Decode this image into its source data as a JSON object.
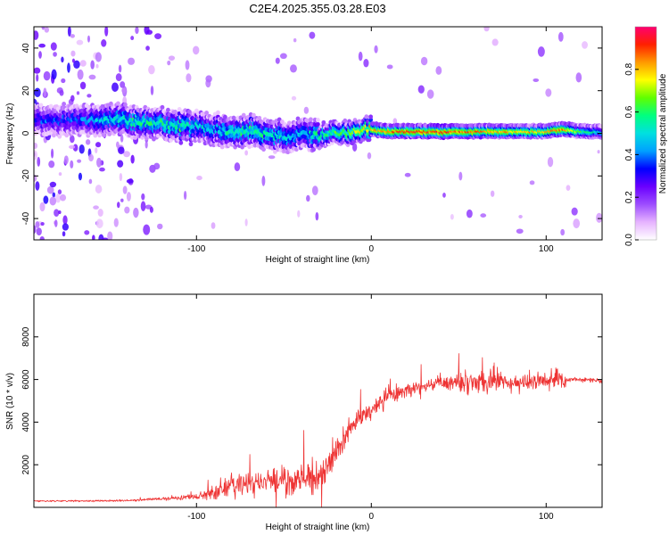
{
  "title": "C2E4.2025.355.03.28.E03",
  "chart_data": [
    {
      "type": "heatmap",
      "xlabel": "Height of straight line (km)",
      "ylabel": "Frequency (Hz)",
      "xlim": [
        -193,
        132
      ],
      "ylim": [
        -50,
        50
      ],
      "xticks": [
        -100,
        0,
        100
      ],
      "xtick_labels": [
        "-100",
        "0",
        "100"
      ],
      "yticks": [
        -40,
        -20,
        0,
        20,
        40
      ],
      "ytick_labels": [
        "-40",
        "-20",
        "0",
        "20",
        "40"
      ],
      "colorbar": {
        "label": "Normalized spectral amplitude",
        "range": [
          0,
          1
        ],
        "ticks": [
          0,
          0.2,
          0.4,
          0.6,
          0.8
        ],
        "tick_labels": [
          "0.0",
          "0.2",
          "0.4",
          "0.6",
          "0.8"
        ],
        "colors": [
          "#ffffff",
          "#e6b3ff",
          "#9d4dff",
          "#6a00ff",
          "#0000ff",
          "#00a0ff",
          "#00e0e0",
          "#00ff80",
          "#60ff00",
          "#ffff00",
          "#ff9900",
          "#ff2000",
          "#ff0070"
        ]
      },
      "ridge": {
        "x": [
          -170,
          -150,
          -130,
          -110,
          -100,
          -90,
          -80,
          -70,
          -60,
          -50,
          -40,
          -30,
          -20,
          -10,
          0,
          10,
          20,
          40,
          60,
          80,
          100,
          110,
          120,
          132
        ],
        "center_hz": [
          6,
          7,
          5,
          3,
          3,
          2,
          1,
          2,
          0,
          -2,
          0,
          -1,
          0,
          1,
          2,
          1,
          1,
          1,
          1,
          1,
          1,
          2,
          1,
          1
        ],
        "amplitude": [
          0.35,
          0.5,
          0.55,
          0.55,
          0.5,
          0.45,
          0.55,
          0.55,
          0.55,
          0.5,
          0.45,
          0.55,
          0.6,
          0.7,
          0.8,
          0.85,
          0.9,
          0.9,
          0.85,
          0.8,
          0.8,
          0.85,
          0.6,
          0.5
        ]
      }
    },
    {
      "type": "line",
      "xlabel": "Height of straight line (km)",
      "ylabel": "SNR (10 * v/v)",
      "xlim": [
        -193,
        132
      ],
      "ylim": [
        0,
        10000
      ],
      "xticks": [
        -100,
        0,
        100
      ],
      "xtick_labels": [
        "-100",
        "0",
        "100"
      ],
      "yticks": [
        2000,
        4000,
        6000,
        8000
      ],
      "ytick_labels": [
        "2000",
        "4000",
        "6000",
        "8000"
      ],
      "series": [
        {
          "name": "SNR",
          "color": "#ee3333",
          "x": [
            -193,
            -160,
            -140,
            -120,
            -110,
            -100,
            -95,
            -90,
            -85,
            -80,
            -70,
            -60,
            -50,
            -40,
            -30,
            -25,
            -20,
            -15,
            -10,
            -5,
            0,
            5,
            10,
            20,
            30,
            40,
            50,
            60,
            70,
            80,
            90,
            100,
            105,
            110,
            112,
            120,
            132
          ],
          "mean": [
            300,
            300,
            320,
            400,
            450,
            500,
            550,
            700,
            900,
            1000,
            1100,
            1200,
            1300,
            1300,
            1400,
            1900,
            2600,
            3300,
            3900,
            4300,
            4600,
            4900,
            5200,
            5500,
            5700,
            5800,
            5900,
            6000,
            5900,
            5800,
            5900,
            6000,
            6100,
            6000,
            6000,
            6000,
            5950
          ],
          "spread": [
            60,
            60,
            70,
            100,
            150,
            250,
            350,
            600,
            800,
            900,
            900,
            1000,
            1000,
            1000,
            1100,
            1300,
            900,
            700,
            600,
            600,
            700,
            800,
            700,
            500,
            500,
            600,
            700,
            900,
            800,
            600,
            600,
            700,
            800,
            1000,
            150,
            150,
            150
          ]
        }
      ]
    }
  ]
}
